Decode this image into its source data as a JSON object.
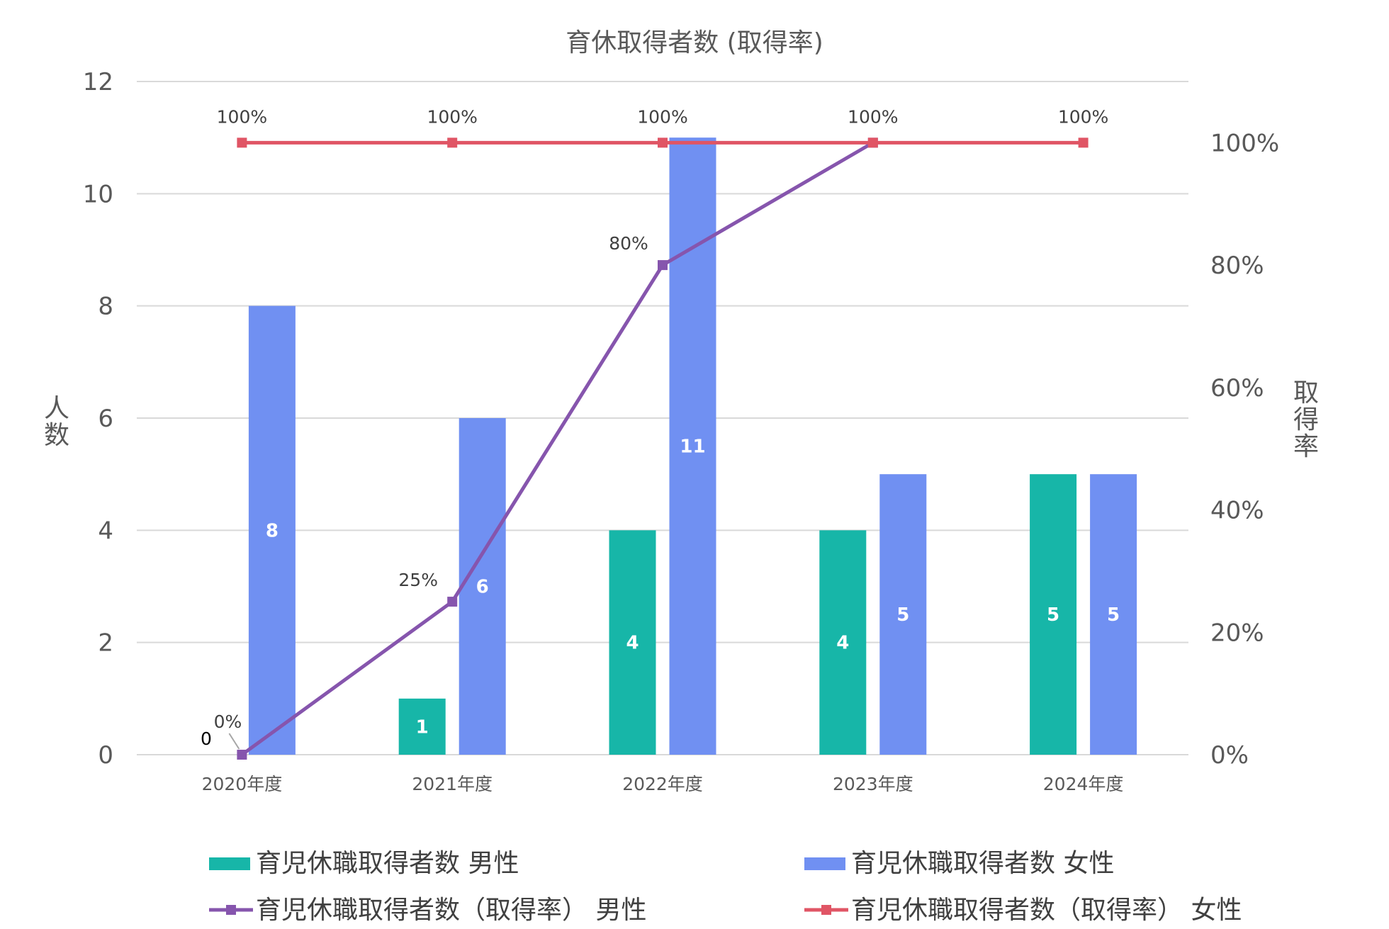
{
  "chart_data": {
    "type": "bar",
    "title": "育休取得者数 (取得率)",
    "categories": [
      "2020年度",
      "2021年度",
      "2022年度",
      "2023年度",
      "2024年度"
    ],
    "y_left": {
      "label": "人数",
      "lim": [
        0,
        12
      ],
      "ticks": [
        "0",
        "2",
        "4",
        "6",
        "8",
        "10",
        "12"
      ]
    },
    "y_right": {
      "label": "取得率",
      "lim": [
        0,
        1.1
      ],
      "ticks": [
        "0%",
        "20%",
        "40%",
        "60%",
        "80%",
        "100%"
      ]
    },
    "grid": true,
    "legend_position": "bottom",
    "series": [
      {
        "name": "育児休職取得者数 男性",
        "type": "bar",
        "axis": "left",
        "color": "#17b6a8",
        "values": [
          0,
          1,
          4,
          4,
          5
        ],
        "labels": [
          "0",
          "1",
          "4",
          "4",
          "5"
        ]
      },
      {
        "name": "育児休職取得者数 女性",
        "type": "bar",
        "axis": "left",
        "color": "#7090f2",
        "values": [
          8,
          6,
          11,
          5,
          5
        ],
        "labels": [
          "8",
          "6",
          "11",
          "5",
          "5"
        ]
      },
      {
        "name": "育児休職取得者数（取得率） 男性",
        "type": "line",
        "axis": "right",
        "color": "#8655ad",
        "values": [
          0,
          0.25,
          0.8,
          1.0,
          null
        ],
        "labels": [
          "0%",
          "25%",
          "80%",
          "",
          ""
        ]
      },
      {
        "name": "育児休職取得者数（取得率） 女性",
        "type": "line",
        "axis": "right",
        "color": "#e05565",
        "values": [
          1.0,
          1.0,
          1.0,
          1.0,
          1.0
        ],
        "labels": [
          "100%",
          "100%",
          "100%",
          "100%",
          "100%"
        ]
      }
    ]
  }
}
